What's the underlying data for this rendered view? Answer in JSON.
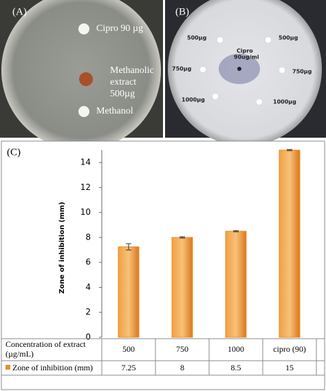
{
  "panel_a": {
    "label": "(A)",
    "cipro": "Cipro 90 µg",
    "extract": [
      "Methanolic",
      "extract",
      "500µg"
    ],
    "methanol": "Methanol"
  },
  "panel_b": {
    "label": "(B)",
    "top_left": "500µg",
    "top_right": "500µg",
    "mid_left": "750µg",
    "mid_right": "750µg",
    "bottom_left": "1000µg",
    "bottom_right": "1000µg",
    "center": [
      "Cipro",
      "90ug/ml"
    ]
  },
  "chart_data": {
    "type": "bar",
    "panel_label": "(C)",
    "y_label": "Zone of inhibition (mm)",
    "x_label": [
      "Concentration of extract",
      "(µg/mL)"
    ],
    "categories": [
      "500",
      "750",
      "1000",
      "cipro (90)"
    ],
    "series": [
      {
        "name": "Zone of inhibition (mm)",
        "color": "#e8902a",
        "values": [
          7.25,
          8,
          8.5,
          15
        ],
        "errors": [
          0.25,
          0.05,
          0.05,
          0.05
        ]
      }
    ],
    "ylim": [
      0,
      15
    ],
    "yticks": [
      0,
      2,
      4,
      6,
      8,
      10,
      12,
      14
    ]
  }
}
